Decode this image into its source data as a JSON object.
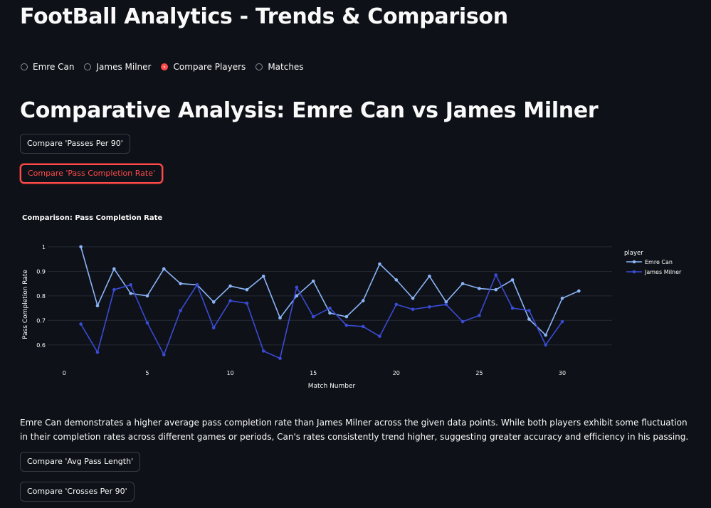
{
  "app": {
    "title": "FootBall Analytics - Trends & Comparison"
  },
  "radio": {
    "options": [
      "Emre Can",
      "James Milner",
      "Compare Players",
      "Matches"
    ],
    "selected": "Compare Players"
  },
  "section": {
    "title": "Comparative Analysis: Emre Can vs James Milner"
  },
  "buttons": {
    "passes_per_90": "Compare 'Passes Per 90'",
    "pass_completion_rate": "Compare 'Pass Completion Rate'",
    "avg_pass_length": "Compare 'Avg Pass Length'",
    "crosses_per_90": "Compare 'Crosses Per 90'"
  },
  "description": "Emre Can demonstrates a higher average pass completion rate than James Milner across the given data points. While both players exhibit some fluctuation in their completion rates across different games or periods, Can's rates consistently trend higher, suggesting greater accuracy and efficiency in his passing.",
  "colors": {
    "accent": "#ff4b4b",
    "emre_can": "#8ab4f8",
    "james_milner": "#3a4bd6",
    "background": "#0e1117"
  },
  "chart_data": {
    "type": "line",
    "title": "Comparison: Pass Completion Rate",
    "xlabel": "Match Number",
    "ylabel": "Pass Completion Rate",
    "xlim": [
      -1,
      33
    ],
    "ylim": [
      0.55,
      1.02
    ],
    "xticks": [
      0,
      5,
      10,
      15,
      20,
      25,
      30
    ],
    "yticks": [
      0.6,
      0.7,
      0.8,
      0.9,
      1
    ],
    "legend_title": "player",
    "legend_position": "right",
    "grid": true,
    "series": [
      {
        "name": "Emre Can",
        "color": "#8ab4f8",
        "x": [
          1,
          2,
          3,
          4,
          5,
          6,
          7,
          8,
          9,
          10,
          11,
          12,
          13,
          14,
          15,
          16,
          17,
          18,
          19,
          20,
          21,
          22,
          23,
          24,
          25,
          26,
          27,
          28,
          29,
          30,
          31
        ],
        "y": [
          1.0,
          0.76,
          0.91,
          0.81,
          0.8,
          0.91,
          0.85,
          0.845,
          0.775,
          0.84,
          0.825,
          0.88,
          0.71,
          0.8,
          0.86,
          0.73,
          0.715,
          0.78,
          0.93,
          0.865,
          0.79,
          0.88,
          0.775,
          0.85,
          0.83,
          0.825,
          0.865,
          0.705,
          0.64,
          0.79,
          0.82
        ]
      },
      {
        "name": "James Milner",
        "color": "#3a4bd6",
        "x": [
          1,
          2,
          3,
          4,
          5,
          6,
          7,
          8,
          9,
          10,
          11,
          12,
          13,
          14,
          15,
          16,
          17,
          18,
          19,
          20,
          21,
          22,
          23,
          24,
          25,
          26,
          27,
          28,
          29,
          30
        ],
        "y": [
          0.685,
          0.57,
          0.825,
          0.845,
          0.69,
          0.56,
          0.74,
          0.845,
          0.67,
          0.78,
          0.77,
          0.575,
          0.545,
          0.835,
          0.715,
          0.75,
          0.68,
          0.675,
          0.635,
          0.765,
          0.745,
          0.755,
          0.765,
          0.695,
          0.72,
          0.885,
          0.75,
          0.74,
          0.6,
          0.695
        ]
      }
    ]
  }
}
